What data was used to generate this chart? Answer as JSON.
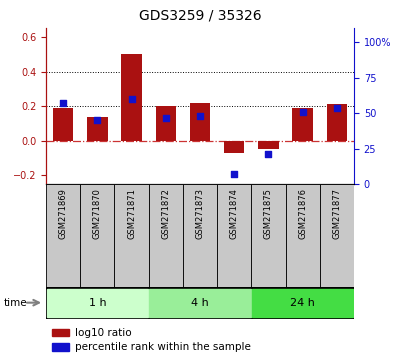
{
  "title": "GDS3259 / 35326",
  "samples": [
    "GSM271869",
    "GSM271870",
    "GSM271871",
    "GSM271872",
    "GSM271873",
    "GSM271874",
    "GSM271875",
    "GSM271876",
    "GSM271877"
  ],
  "log10_ratio": [
    0.19,
    0.14,
    0.5,
    0.2,
    0.22,
    -0.07,
    -0.05,
    0.19,
    0.21
  ],
  "percentile_rank": [
    57,
    45,
    60,
    47,
    48,
    7,
    21,
    51,
    54
  ],
  "groups": [
    {
      "label": "1 h",
      "indices": [
        0,
        1,
        2
      ],
      "color": "#ccffcc"
    },
    {
      "label": "4 h",
      "indices": [
        3,
        4,
        5
      ],
      "color": "#99ee99"
    },
    {
      "label": "24 h",
      "indices": [
        6,
        7,
        8
      ],
      "color": "#44dd44"
    }
  ],
  "ylim_left": [
    -0.25,
    0.65
  ],
  "ylim_right": [
    0,
    110
  ],
  "yticks_left": [
    -0.2,
    0.0,
    0.2,
    0.4,
    0.6
  ],
  "yticks_right": [
    0,
    25,
    50,
    75,
    100
  ],
  "bar_color": "#aa1111",
  "dot_color": "#1111cc",
  "hline_color": "#cc3333",
  "dotline_color": "black",
  "label_bg_color": "#c8c8c8",
  "group_border_color": "#000000",
  "legend_bar_label": "log10 ratio",
  "legend_dot_label": "percentile rank within the sample",
  "title_fontsize": 10,
  "tick_fontsize": 7,
  "label_fontsize": 6,
  "group_fontsize": 8,
  "legend_fontsize": 7.5
}
